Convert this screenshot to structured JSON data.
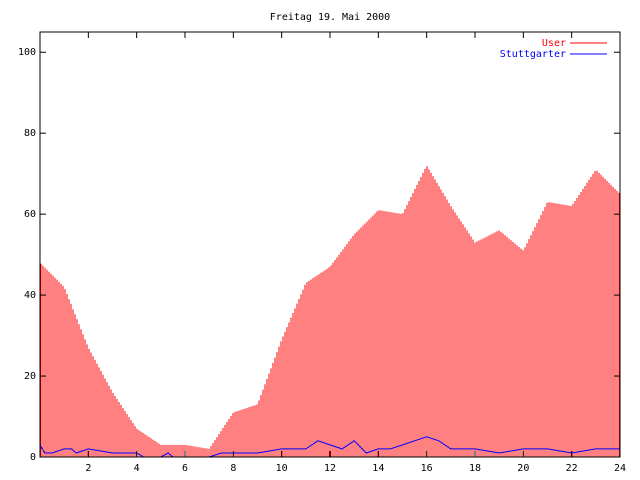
{
  "chart_data": {
    "type": "bar",
    "title": "Freitag 19. Mai 2000",
    "xlim": [
      0,
      24
    ],
    "ylim": [
      0,
      105
    ],
    "x_ticks": [
      "2",
      "4",
      "6",
      "8",
      "10",
      "12",
      "14",
      "16",
      "18",
      "20",
      "22",
      "24"
    ],
    "y_ticks": [
      "0",
      "20",
      "40",
      "60",
      "80",
      "100"
    ],
    "legend_position": "top-right",
    "colors": {
      "user": "#ff0000",
      "stuttgarter": "#0000ff",
      "axes": "#000000"
    },
    "series": [
      {
        "name": "User",
        "style": "impulses",
        "color": "#ff0000",
        "x": [
          0,
          1,
          2,
          3,
          4,
          5,
          6,
          7,
          8,
          9,
          10,
          11,
          12,
          13,
          14,
          15,
          16,
          17,
          18,
          19,
          20,
          21,
          22,
          23,
          24
        ],
        "values": [
          48,
          42,
          27,
          16,
          7,
          3,
          3,
          2,
          11,
          13,
          29,
          43,
          47,
          55,
          61,
          60,
          72,
          62,
          53,
          56,
          51,
          63,
          62,
          71,
          65
        ]
      },
      {
        "name": "Stuttgarter",
        "style": "line",
        "color": "#0000ff",
        "x": [
          0,
          0.2,
          0.5,
          1,
          1.3,
          1.5,
          2,
          3,
          4,
          4.3,
          4.5,
          5,
          5.3,
          5.5,
          6,
          7,
          7.5,
          8,
          9,
          10,
          11,
          11.5,
          12,
          12.5,
          13,
          13.5,
          14,
          14.5,
          15,
          15.5,
          16,
          16.5,
          17,
          18,
          19,
          20,
          21,
          22,
          23,
          24
        ],
        "values": [
          3,
          1,
          1,
          2,
          2,
          1,
          2,
          1,
          1,
          0,
          0,
          0,
          1,
          0,
          0,
          0,
          1,
          1,
          1,
          2,
          2,
          4,
          3,
          2,
          4,
          1,
          2,
          2,
          3,
          4,
          5,
          4,
          2,
          2,
          1,
          2,
          2,
          1,
          2,
          2
        ]
      }
    ]
  }
}
